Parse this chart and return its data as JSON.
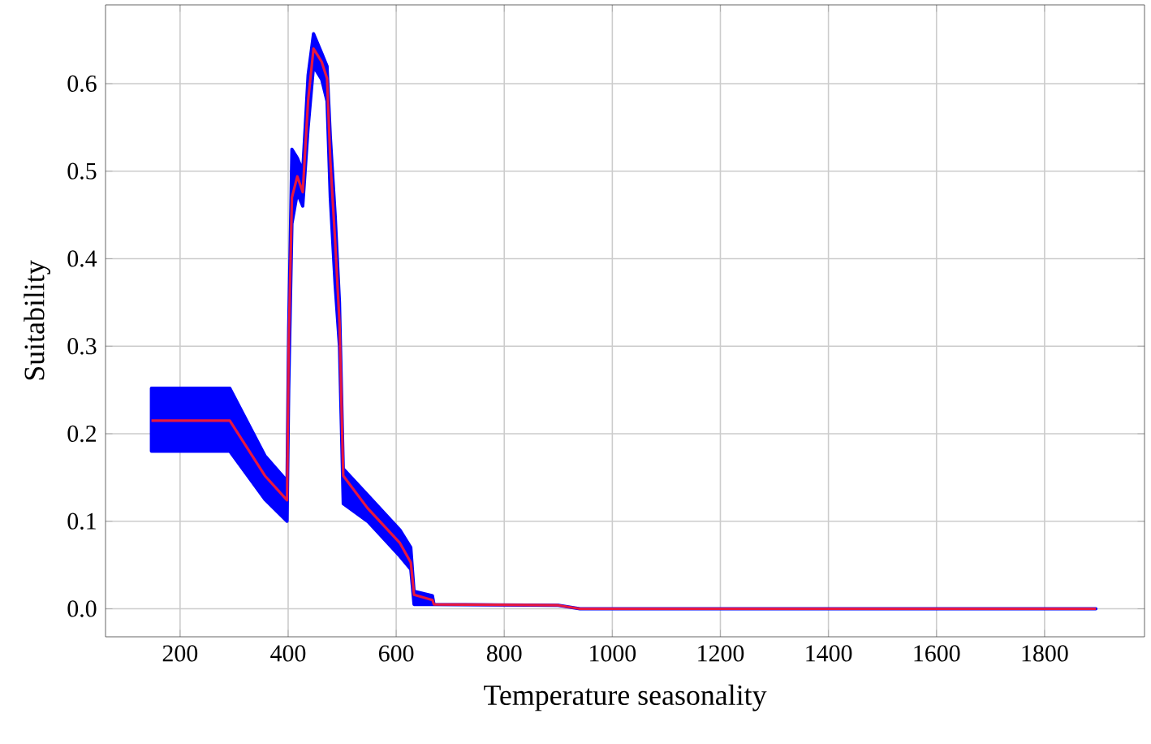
{
  "chart_data": {
    "type": "line",
    "xlabel": "Temperature seasonality",
    "ylabel": "Suitability",
    "xlim": [
      62,
      1985
    ],
    "ylim": [
      -0.032,
      0.69
    ],
    "xticks": [
      200,
      400,
      600,
      800,
      1000,
      1200,
      1400,
      1600,
      1800
    ],
    "yticks": [
      {
        "value": 0,
        "label": "0.0"
      },
      0.1,
      0.2,
      0.3,
      0.4,
      0.5,
      0.6
    ],
    "grid": true,
    "marker": "none",
    "line_style": "solid",
    "series": [
      {
        "color": "#e8173f",
        "x": [
          147,
          292,
          357,
          398,
          401,
          407,
          417,
          427,
          437,
          447,
          462,
          472,
          478,
          487,
          495,
          502,
          547,
          607,
          627,
          633,
          667,
          670,
          900,
          940,
          1895
        ],
        "values": [
          0.215,
          0.215,
          0.152,
          0.124,
          0.3,
          0.47,
          0.494,
          0.476,
          0.581,
          0.64,
          0.625,
          0.606,
          0.513,
          0.42,
          0.327,
          0.152,
          0.115,
          0.075,
          0.053,
          0.016,
          0.01,
          0.005,
          0.004,
          0.0,
          0.0
        ],
        "lower": [
          0.18,
          0.18,
          0.125,
          0.1,
          0.25,
          0.44,
          0.475,
          0.46,
          0.55,
          0.62,
          0.605,
          0.58,
          0.47,
          0.37,
          0.3,
          0.12,
          0.1,
          0.06,
          0.045,
          0.005,
          0.005,
          0.005,
          0.004,
          0.0,
          0.0
        ],
        "upper": [
          0.252,
          0.252,
          0.175,
          0.146,
          0.32,
          0.525,
          0.515,
          0.5,
          0.61,
          0.657,
          0.635,
          0.62,
          0.54,
          0.45,
          0.35,
          0.16,
          0.13,
          0.09,
          0.07,
          0.02,
          0.015,
          0.005,
          0.004,
          0.0,
          0.0
        ]
      }
    ]
  }
}
